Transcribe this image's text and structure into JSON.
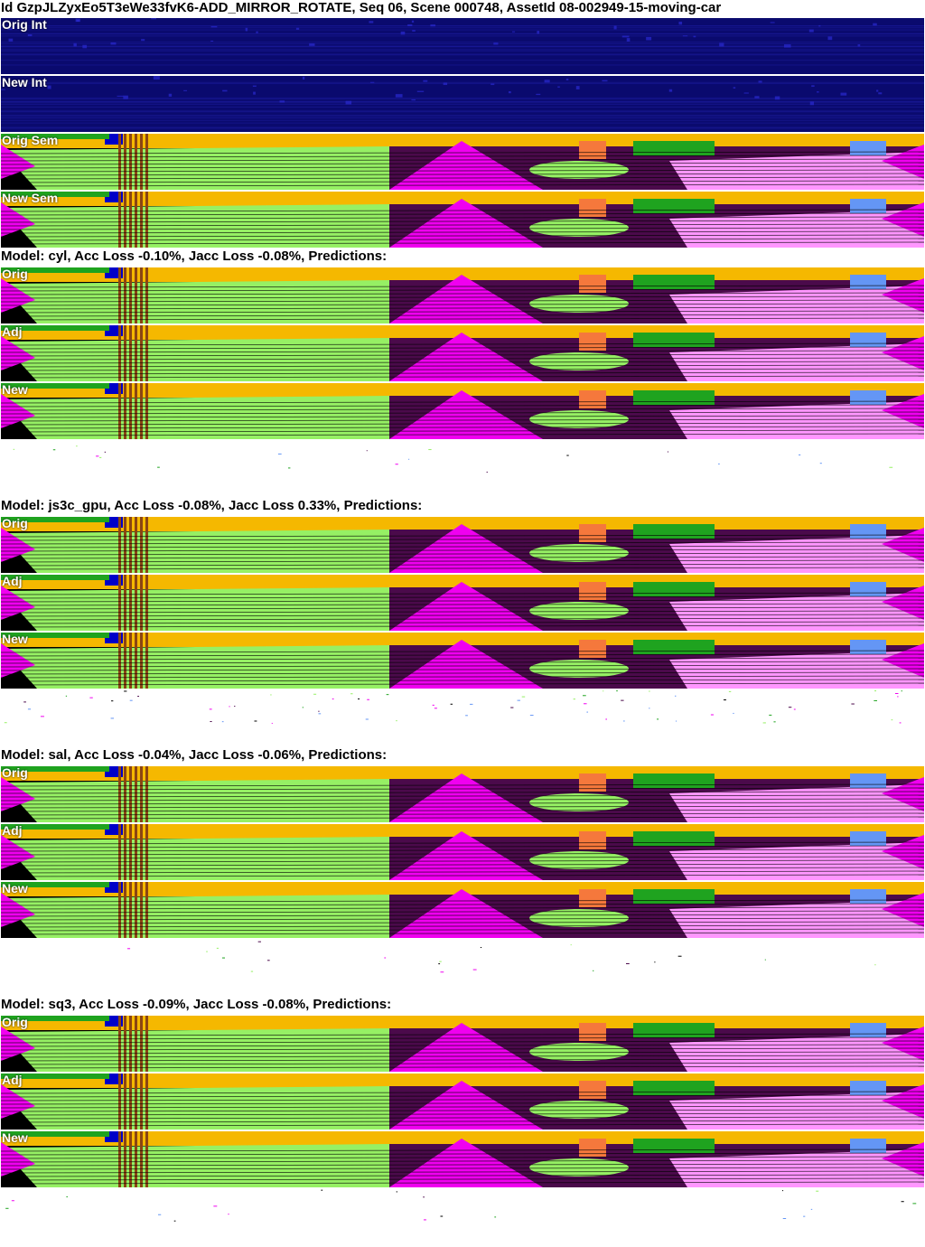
{
  "header": {
    "title": "Id GzpJLZyxEo5T3eWe33fvK6-ADD_MIRROR_ROTATE, Seq 06, Scene 000748, AssetId 08-002949-15-moving-car"
  },
  "input_strips": [
    {
      "label": "Orig Int",
      "kind": "intensity"
    },
    {
      "label": "New Int",
      "kind": "intensity"
    },
    {
      "label": "Orig Sem",
      "kind": "semantic"
    },
    {
      "label": "New Sem",
      "kind": "semantic"
    }
  ],
  "models": [
    {
      "header": "Model: cyl, Acc Loss -0.10%, Jacc Loss -0.08%, Predictions:",
      "strips": [
        {
          "label": "Orig"
        },
        {
          "label": "Adj"
        },
        {
          "label": "New"
        }
      ]
    },
    {
      "header": "Model: js3c_gpu, Acc Loss -0.08%, Jacc Loss 0.33%, Predictions:",
      "strips": [
        {
          "label": "Orig"
        },
        {
          "label": "Adj"
        },
        {
          "label": "New"
        }
      ]
    },
    {
      "header": "Model: sal, Acc Loss -0.04%, Jacc Loss -0.06%, Predictions:",
      "strips": [
        {
          "label": "Orig"
        },
        {
          "label": "Adj"
        },
        {
          "label": "New"
        }
      ]
    },
    {
      "header": "Model: sq3, Acc Loss -0.09%, Jacc Loss -0.08%, Predictions:",
      "strips": [
        {
          "label": "Orig"
        },
        {
          "label": "Adj"
        },
        {
          "label": "New"
        }
      ]
    }
  ],
  "colors": {
    "background": "#ffffff",
    "intensity_bg": "#0a0a6e",
    "sky_building": "#f5b800",
    "vegetation": "#1fa31f",
    "ground_green": "#96f064",
    "road": "#4b0a4b",
    "sidewalk_magenta": "#f000f0",
    "terrain_pink": "#ff96ff",
    "car_orange": "#f5783c",
    "trunk_brown": "#8b4513",
    "blue_object": "#6496f5",
    "dark_blue": "#0000c8",
    "black": "#000000"
  }
}
